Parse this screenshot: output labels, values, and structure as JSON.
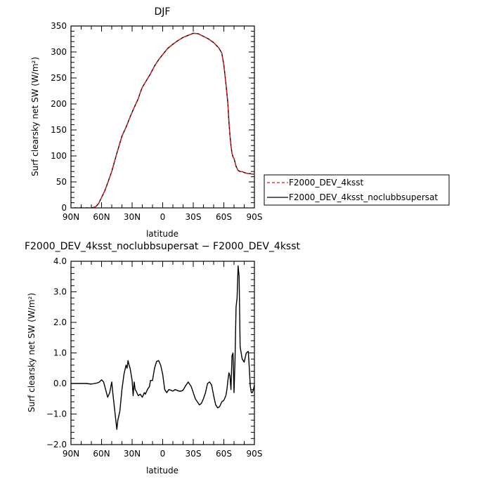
{
  "chart_data": [
    {
      "type": "line",
      "title": "DJF",
      "xlabel": "latitude",
      "ylabel": "Surf clearsky net SW (W/m²)",
      "xlim": [
        90,
        -90
      ],
      "ylim": [
        0,
        350
      ],
      "xticks": [
        90,
        60,
        30,
        0,
        -30,
        -60,
        -90
      ],
      "xtick_labels": [
        "90N",
        "60N",
        "30N",
        "0",
        "30S",
        "60S",
        "90S"
      ],
      "yticks": [
        0,
        50,
        100,
        150,
        200,
        250,
        300,
        350
      ],
      "ytick_labels": [
        "0",
        "50",
        "100",
        "150",
        "200",
        "250",
        "300",
        "350"
      ],
      "legend": {
        "placement": "right",
        "entries": [
          {
            "label": "F2000_DEV_4ksst",
            "color": "#e41a1c",
            "dash": "dashed"
          },
          {
            "label": "F2000_DEV_4ksst_noclubbsupersat",
            "color": "#000000",
            "dash": "solid"
          }
        ]
      },
      "series": [
        {
          "name": "F2000_DEV_4ksst",
          "color": "#e41a1c",
          "dash": "dashed",
          "x": [
            90,
            80,
            70,
            66,
            63,
            60,
            57,
            54,
            50,
            45,
            40,
            36,
            32,
            28,
            24,
            22,
            20,
            16,
            12,
            8,
            4,
            0,
            -5,
            -10,
            -15,
            -20,
            -25,
            -30,
            -35,
            -38,
            -40,
            -45,
            -50,
            -55,
            -58,
            -60,
            -62,
            -64,
            -65,
            -66,
            -67,
            -68,
            -69,
            -70,
            -72,
            -74,
            -76,
            -78,
            -80,
            -82,
            -84,
            -86,
            -88,
            -90
          ],
          "y": [
            0,
            0,
            0,
            2,
            8,
            20,
            32,
            48,
            70,
            105,
            138,
            155,
            175,
            193,
            210,
            222,
            232,
            245,
            258,
            273,
            285,
            295,
            307,
            315,
            322,
            328,
            332,
            336,
            335,
            332,
            330,
            325,
            318,
            308,
            298,
            275,
            240,
            200,
            165,
            140,
            120,
            105,
            98,
            95,
            80,
            72,
            70,
            70,
            68,
            67,
            66,
            66,
            65,
            65
          ]
        },
        {
          "name": "F2000_DEV_4ksst_noclubbsupersat",
          "color": "#000000",
          "dash": "solid",
          "x": [
            90,
            80,
            70,
            66,
            63,
            60,
            57,
            54,
            50,
            45,
            40,
            36,
            32,
            28,
            24,
            22,
            20,
            16,
            12,
            8,
            4,
            0,
            -5,
            -10,
            -15,
            -20,
            -25,
            -30,
            -35,
            -38,
            -40,
            -45,
            -50,
            -55,
            -58,
            -60,
            -62,
            -64,
            -65,
            -66,
            -67,
            -68,
            -69,
            -70,
            -72,
            -74,
            -76,
            -78,
            -80,
            -82,
            -84,
            -86,
            -88,
            -90
          ],
          "y": [
            0,
            0,
            0,
            2,
            8,
            20,
            32,
            48,
            70,
            105,
            138,
            155,
            175,
            193,
            210,
            222,
            232,
            245,
            258,
            273,
            285,
            295,
            307,
            315,
            322,
            328,
            332,
            336,
            335,
            332,
            330,
            325,
            318,
            308,
            298,
            275,
            240,
            200,
            165,
            140,
            120,
            105,
            98,
            95,
            80,
            72,
            70,
            70,
            68,
            67,
            66,
            66,
            65,
            65
          ]
        }
      ]
    },
    {
      "type": "line",
      "title": "F2000_DEV_4ksst_noclubbsupersat − F2000_DEV_4ksst",
      "xlabel": "latitude",
      "ylabel": "Surf clearsky net SW (W/m²)",
      "xlim": [
        90,
        -90
      ],
      "ylim": [
        -2.0,
        4.0
      ],
      "xticks": [
        90,
        60,
        30,
        0,
        -30,
        -60,
        -90
      ],
      "xtick_labels": [
        "90N",
        "60N",
        "30N",
        "0",
        "30S",
        "60S",
        "90S"
      ],
      "yticks": [
        -2,
        -1,
        0,
        1,
        2,
        3,
        4
      ],
      "ytick_labels": [
        "−2.0",
        "−1.0",
        "0.0",
        "1.0",
        "2.0",
        "3.0",
        "4.0"
      ],
      "series": [
        {
          "color": "#000000",
          "dash": "solid",
          "x": [
            90,
            80,
            75,
            70,
            67,
            64,
            62,
            60,
            58,
            56,
            54,
            52,
            50,
            49,
            47,
            45,
            44,
            42,
            40,
            38,
            36,
            35,
            34,
            33,
            32,
            31,
            30,
            29,
            28,
            27,
            26,
            24,
            22,
            20,
            18,
            17,
            15,
            13,
            12,
            10,
            8,
            6,
            4,
            2,
            0,
            -2,
            -4,
            -6,
            -8,
            -10,
            -12,
            -14,
            -16,
            -18,
            -20,
            -22,
            -25,
            -28,
            -30,
            -32,
            -34,
            -36,
            -38,
            -40,
            -42,
            -44,
            -46,
            -48,
            -50,
            -52,
            -54,
            -56,
            -58,
            -60,
            -62,
            -63,
            -64,
            -65,
            -66,
            -67,
            -68,
            -69,
            -70,
            -71,
            -72,
            -73,
            -74,
            -75,
            -76,
            -78,
            -80,
            -82,
            -84,
            -85,
            -86,
            -87,
            -88,
            -89,
            -90
          ],
          "y": [
            0,
            0,
            0,
            -0.02,
            0,
            0.02,
            0.05,
            0.12,
            0.05,
            -0.2,
            -0.45,
            -0.3,
            0.05,
            -0.3,
            -0.9,
            -1.5,
            -1.2,
            -0.9,
            -0.2,
            0.3,
            0.6,
            0.5,
            0.75,
            0.6,
            0.5,
            0.3,
            0.1,
            -0.4,
            0.05,
            -0.2,
            -0.25,
            -0.4,
            -0.35,
            -0.45,
            -0.3,
            -0.35,
            -0.2,
            -0.1,
            0.1,
            0.1,
            0.5,
            0.72,
            0.75,
            0.6,
            0.3,
            -0.2,
            -0.3,
            -0.2,
            -0.22,
            -0.25,
            -0.2,
            -0.22,
            -0.25,
            -0.25,
            -0.22,
            -0.1,
            0.05,
            -0.1,
            -0.3,
            -0.5,
            -0.6,
            -0.7,
            -0.65,
            -0.5,
            -0.3,
            0.0,
            0.05,
            -0.05,
            -0.4,
            -0.7,
            -0.8,
            -0.75,
            -0.6,
            -0.55,
            -0.4,
            -0.2,
            0.1,
            0.35,
            0.25,
            -0.2,
            0.9,
            1.0,
            -0.3,
            0.8,
            2.5,
            2.8,
            3.85,
            3.5,
            1.2,
            0.8,
            0.7,
            1.0,
            1.05,
            0.5,
            -0.1,
            -0.3,
            -0.3,
            -0.2,
            -0.05
          ]
        }
      ]
    }
  ]
}
